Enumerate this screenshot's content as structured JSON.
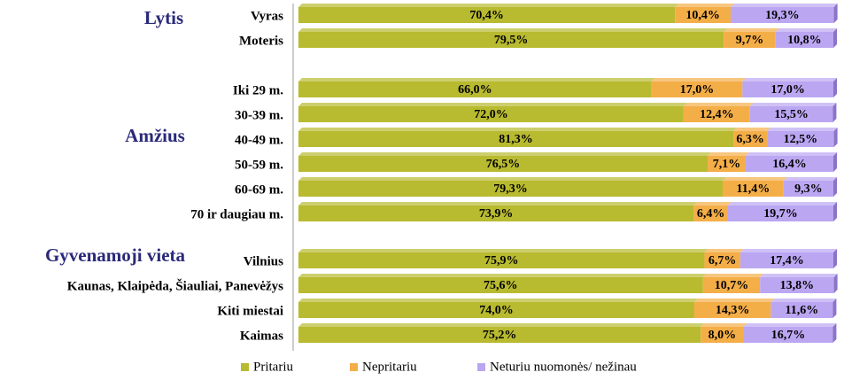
{
  "chart_data": {
    "type": "stacked-bar-horizontal",
    "xlim": [
      0,
      100
    ],
    "groups": [
      {
        "name": "Lytis",
        "categories": [
          "Vyras",
          "Moteris"
        ]
      },
      {
        "name": "Amžius",
        "categories": [
          "Iki 29 m.",
          "30-39 m.",
          "40-49 m.",
          "50-59 m.",
          "60-69 m.",
          "70 ir daugiau m."
        ]
      },
      {
        "name": "Gyvenamoji vieta",
        "categories": [
          "Vilnius",
          "Kaunas, Klaipėda, Šiauliai, Panevėžys",
          "Kiti miestai",
          "Kaimas"
        ]
      }
    ],
    "series": [
      {
        "name": "Pritariu",
        "color": "#b8ba30",
        "values": [
          70.4,
          79.5,
          66.0,
          72.0,
          81.3,
          76.5,
          79.3,
          73.9,
          75.9,
          75.6,
          74.0,
          75.2
        ],
        "value_labels": [
          "70,4%",
          "79,5%",
          "66,0%",
          "72,0%",
          "81,3%",
          "76,5%",
          "79,3%",
          "73,9%",
          "75,9%",
          "75,6%",
          "74,0%",
          "75,2%"
        ]
      },
      {
        "name": "Nepritariu",
        "color": "#f4ae48",
        "values": [
          10.4,
          9.7,
          17.0,
          12.4,
          6.3,
          7.1,
          11.4,
          6.4,
          6.7,
          10.7,
          14.3,
          8.0
        ],
        "value_labels": [
          "10,4%",
          "9,7%",
          "17,0%",
          "12,4%",
          "6,3%",
          "7,1%",
          "11,4%",
          "6,4%",
          "6,7%",
          "10,7%",
          "14,3%",
          "8,0%"
        ]
      },
      {
        "name": "Neturiu nuomonės/ nežinau",
        "color": "#bba6f2",
        "values": [
          19.3,
          10.8,
          17.0,
          15.5,
          12.5,
          16.4,
          9.3,
          19.7,
          17.4,
          13.8,
          11.6,
          16.7
        ],
        "value_labels": [
          "19,3%",
          "10,8%",
          "17,0%",
          "15,5%",
          "12,5%",
          "16,4%",
          "9,3%",
          "19,7%",
          "17,4%",
          "13,8%",
          "11,6%",
          "16,7%"
        ]
      }
    ]
  }
}
